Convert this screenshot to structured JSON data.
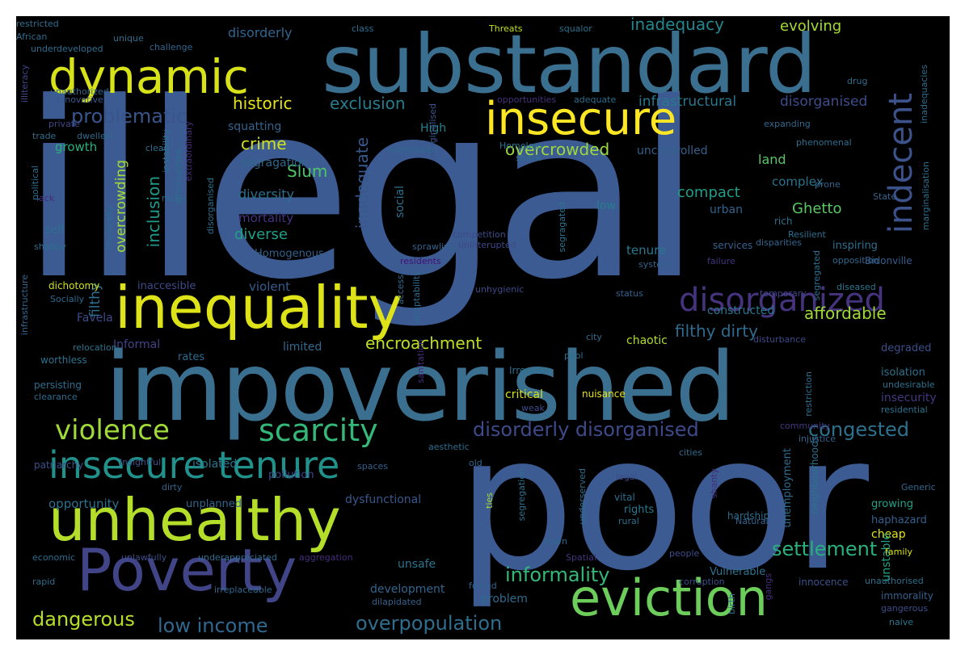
{
  "words": [
    {
      "text": "illegal",
      "color": "#3b5b92"
    },
    {
      "text": "poor",
      "color": "#3b5b92"
    },
    {
      "text": "impoverished",
      "color": "#3b6f8f"
    },
    {
      "text": "substandard",
      "color": "#3b6f8f"
    },
    {
      "text": "Poverty",
      "color": "#414487"
    },
    {
      "text": "inequality",
      "color": "#dde318"
    },
    {
      "text": "unhealthy",
      "color": "#b5de2b"
    },
    {
      "text": "eviction",
      "color": "#6ccd5a"
    },
    {
      "text": "insecure",
      "color": "#fde725"
    },
    {
      "text": "dynamic",
      "color": "#d8e219"
    },
    {
      "text": "insecure tenure",
      "color": "#21918c"
    },
    {
      "text": "disorganized",
      "color": "#46337e"
    },
    {
      "text": "indecent",
      "color": "#3b528b"
    },
    {
      "text": "violence",
      "color": "#a0da39"
    },
    {
      "text": "scarcity",
      "color": "#35b779"
    },
    {
      "text": "disorderly disorganised",
      "color": "#3e4a89"
    },
    {
      "text": "congested",
      "color": "#2c728e"
    },
    {
      "text": "problematic",
      "color": "#39568c"
    },
    {
      "text": "settlement",
      "color": "#2ab07f"
    },
    {
      "text": "informality",
      "color": "#35b779"
    },
    {
      "text": "dangerous",
      "color": "#b5de2b"
    },
    {
      "text": "low income",
      "color": "#31688e"
    },
    {
      "text": "overpopulation",
      "color": "#2e6e8e"
    },
    {
      "text": "encroachment",
      "color": "#bddf26"
    },
    {
      "text": "affordable",
      "color": "#9fda3a"
    },
    {
      "text": "filthy dirty",
      "color": "#2f6b8e"
    },
    {
      "text": "exclusion",
      "color": "#287c8e"
    },
    {
      "text": "historic",
      "color": "#e5e419"
    },
    {
      "text": "overcrowded",
      "color": "#9bd93c"
    },
    {
      "text": "inadequacy",
      "color": "#24868e"
    },
    {
      "text": "evolving",
      "color": "#a5db36"
    },
    {
      "text": "infrastructural",
      "color": "#2a788e"
    },
    {
      "text": "disorganised",
      "color": "#3d4d8a"
    },
    {
      "text": "crime",
      "color": "#d2e21b"
    },
    {
      "text": "Slum",
      "color": "#4ec36b"
    },
    {
      "text": "inadequate",
      "color": "#38598c"
    },
    {
      "text": "inclusion",
      "color": "#1f998a"
    },
    {
      "text": "overcrowding",
      "color": "#a8db34"
    },
    {
      "text": "filthy",
      "color": "#2e6f8e"
    },
    {
      "text": "compact",
      "color": "#1f9e89"
    },
    {
      "text": "diverse",
      "color": "#1fa088"
    },
    {
      "text": "diversity",
      "color": "#2d708e"
    },
    {
      "text": "Ghetto",
      "color": "#5ac864"
    },
    {
      "text": "land",
      "color": "#56c667"
    },
    {
      "text": "complex",
      "color": "#2c728e"
    },
    {
      "text": "growth",
      "color": "#29af7f"
    },
    {
      "text": "segragation",
      "color": "#31688e"
    },
    {
      "text": "squatting",
      "color": "#33638d"
    },
    {
      "text": "disorderly",
      "color": "#32658e"
    },
    {
      "text": "High",
      "color": "#26828e"
    },
    {
      "text": "mortality",
      "color": "#46337e"
    },
    {
      "text": "self",
      "color": "#2e6e8e"
    },
    {
      "text": "tenure",
      "color": "#2a788e"
    },
    {
      "text": "low",
      "color": "#287c8e"
    },
    {
      "text": "urban",
      "color": "#33638d"
    },
    {
      "text": "social",
      "color": "#2c728e"
    },
    {
      "text": "violent",
      "color": "#365d8d"
    },
    {
      "text": "Homogenous",
      "color": "#34618d"
    },
    {
      "text": "uncontrolled",
      "color": "#34618d"
    },
    {
      "text": "constructed",
      "color": "#2a768e"
    },
    {
      "text": "chaotic",
      "color": "#b0dd2f"
    },
    {
      "text": "Favela",
      "color": "#3e4c8a"
    },
    {
      "text": "Informal",
      "color": "#414487"
    },
    {
      "text": "rates",
      "color": "#2e6d8e"
    },
    {
      "text": "limited",
      "color": "#31688e"
    },
    {
      "text": "critical",
      "color": "#d5e21a"
    },
    {
      "text": "isolated",
      "color": "#2a788e"
    },
    {
      "text": "pollution",
      "color": "#3f4889"
    },
    {
      "text": "opportunity",
      "color": "#2d708e"
    },
    {
      "text": "unplanned",
      "color": "#31688e"
    },
    {
      "text": "dysfunctional",
      "color": "#39568c"
    },
    {
      "text": "rights",
      "color": "#2a788e"
    },
    {
      "text": "cheap",
      "color": "#e2e418"
    },
    {
      "text": "unstable",
      "color": "#21a585"
    },
    {
      "text": "unsafe",
      "color": "#2c738e"
    },
    {
      "text": "development",
      "color": "#32658e"
    },
    {
      "text": "problem",
      "color": "#306a8e"
    },
    {
      "text": "Vulnerable",
      "color": "#2c728e"
    },
    {
      "text": "innocence",
      "color": "#3b528b"
    },
    {
      "text": "immorality",
      "color": "#34618d"
    },
    {
      "text": "unauthorised",
      "color": "#2d708e"
    },
    {
      "text": "unemployment",
      "color": "#2f6c8e"
    },
    {
      "text": "neighbourhoods",
      "color": "#2c728e"
    },
    {
      "text": "haphazard",
      "color": "#35608d"
    },
    {
      "text": "growing",
      "color": "#20a386"
    },
    {
      "text": "hardship",
      "color": "#2e6e8e"
    },
    {
      "text": "isolation",
      "color": "#2d718e"
    },
    {
      "text": "insecurity",
      "color": "#453781"
    },
    {
      "text": "undesirable",
      "color": "#2d718e"
    },
    {
      "text": "residential",
      "color": "#2c738e"
    },
    {
      "text": "degraded",
      "color": "#3c4f8a"
    },
    {
      "text": "nuisance",
      "color": "#e7e419"
    },
    {
      "text": "Irregular",
      "color": "#2e6f8e"
    },
    {
      "text": "services",
      "color": "#34618d"
    },
    {
      "text": "system",
      "color": "#33638d"
    },
    {
      "text": "access",
      "color": "#2f6b8e"
    },
    {
      "text": "status",
      "color": "#33638d"
    },
    {
      "text": "temporary",
      "color": "#3f4788"
    },
    {
      "text": "diseased",
      "color": "#2a788e"
    },
    {
      "text": "disturbance",
      "color": "#3e4989"
    },
    {
      "text": "inspiring",
      "color": "#2d708e"
    },
    {
      "text": "Bidonville",
      "color": "#365d8d"
    },
    {
      "text": "opposition",
      "color": "#31688e"
    },
    {
      "text": "disparities",
      "color": "#32658e"
    },
    {
      "text": "failure",
      "color": "#46337e"
    },
    {
      "text": "Resilient",
      "color": "#2e6f8e"
    },
    {
      "text": "rich",
      "color": "#2d708e"
    },
    {
      "text": "prone",
      "color": "#33638d"
    },
    {
      "text": "phenomenal",
      "color": "#2e6e8e"
    },
    {
      "text": "expanding",
      "color": "#306a8e"
    },
    {
      "text": "Homeless",
      "color": "#2c738e"
    },
    {
      "text": "shack",
      "color": "#2e6e8e"
    },
    {
      "text": "competition",
      "color": "#3e4c8a"
    },
    {
      "text": "uninterupted",
      "color": "#3f4889"
    },
    {
      "text": "sprawling",
      "color": "#33638d"
    },
    {
      "text": "residents",
      "color": "#440f76"
    },
    {
      "text": "marginalised",
      "color": "#3a548c"
    },
    {
      "text": "inaccesible",
      "color": "#3e4a89"
    },
    {
      "text": "dichotomy",
      "color": "#cde11d"
    },
    {
      "text": "Socially",
      "color": "#306a8e"
    },
    {
      "text": "relocation",
      "color": "#2c738e"
    },
    {
      "text": "worthless",
      "color": "#2d718e"
    },
    {
      "text": "persisting",
      "color": "#2e6e8e"
    },
    {
      "text": "clearance",
      "color": "#2f6c8e"
    },
    {
      "text": "patriarchy",
      "color": "#3b528b"
    },
    {
      "text": "economic",
      "color": "#2e6d8e"
    },
    {
      "text": "rapid",
      "color": "#2e6e8e"
    },
    {
      "text": "irreplaceable",
      "color": "#31688e"
    },
    {
      "text": "unlawfully",
      "color": "#3e4c8a"
    },
    {
      "text": "underappreciated",
      "color": "#2e6e8e"
    },
    {
      "text": "aggregation",
      "color": "#472d7b"
    },
    {
      "text": "dilapidated",
      "color": "#34618d"
    },
    {
      "text": "forced",
      "color": "#32658e"
    },
    {
      "text": "corruption",
      "color": "#3b528b"
    },
    {
      "text": "people",
      "color": "#3e4c8a"
    },
    {
      "text": "family",
      "color": "#dae319"
    },
    {
      "text": "gangerous",
      "color": "#3d4e8a"
    },
    {
      "text": "naive",
      "color": "#2a768e"
    },
    {
      "text": "Generic",
      "color": "#31688e"
    },
    {
      "text": "vital",
      "color": "#2d708e"
    },
    {
      "text": "rural",
      "color": "#2d718e"
    },
    {
      "text": "legal",
      "color": "#3e4c8a"
    },
    {
      "text": "town",
      "color": "#31688e"
    },
    {
      "text": "Natural",
      "color": "#32658e"
    },
    {
      "text": "Spatial",
      "color": "#46337e"
    },
    {
      "text": "pool",
      "color": "#2d708e"
    },
    {
      "text": "city",
      "color": "#2e6e8e"
    },
    {
      "text": "cities",
      "color": "#2e6d8e"
    },
    {
      "text": "old",
      "color": "#32658e"
    },
    {
      "text": "spaces",
      "color": "#34618d"
    },
    {
      "text": "aesthetic",
      "color": "#2e6d8e"
    },
    {
      "text": "Insightful",
      "color": "#3b528b"
    },
    {
      "text": "community",
      "color": "#453882"
    },
    {
      "text": "injustice",
      "color": "#33638d"
    },
    {
      "text": "weak",
      "color": "#3e4c8a"
    },
    {
      "text": "unhygienic",
      "color": "#3e4989"
    },
    {
      "text": "restricted",
      "color": "#2e6f8e"
    },
    {
      "text": "African",
      "color": "#2f6b8e"
    },
    {
      "text": "illiteracy",
      "color": "#3f4788"
    },
    {
      "text": "underdeveloped",
      "color": "#2e6e8e"
    },
    {
      "text": "unique",
      "color": "#2e6e8e"
    },
    {
      "text": "challenge",
      "color": "#32658e"
    },
    {
      "text": "class",
      "color": "#2e6e8e"
    },
    {
      "text": "Threats",
      "color": "#c2df23"
    },
    {
      "text": "squalor",
      "color": "#2c738e"
    },
    {
      "text": "unauthorized",
      "color": "#32658e"
    },
    {
      "text": "Innovative",
      "color": "#38598c"
    },
    {
      "text": "private",
      "color": "#3f4788"
    },
    {
      "text": "trade",
      "color": "#2e6e8e"
    },
    {
      "text": "dwellers",
      "color": "#2f6c8e"
    },
    {
      "text": "overlooked",
      "color": "#306a8e"
    },
    {
      "text": "opportunities",
      "color": "#46337e"
    },
    {
      "text": "adequate",
      "color": "#2e6d8e"
    },
    {
      "text": "clear",
      "color": "#2e6e8e"
    },
    {
      "text": "racial",
      "color": "#306a8e"
    },
    {
      "text": "lack",
      "color": "#472d7b"
    },
    {
      "text": "political",
      "color": "#2e6e8e"
    },
    {
      "text": "shabby",
      "color": "#2e6e8e"
    },
    {
      "text": "infrastructure",
      "color": "#32658e"
    },
    {
      "text": "drug",
      "color": "#2e6e8e"
    },
    {
      "text": "inadequacies",
      "color": "#2e6d8e"
    },
    {
      "text": "State",
      "color": "#32658e"
    },
    {
      "text": "marginalisation",
      "color": "#2e6e8e"
    },
    {
      "text": "segregation",
      "color": "#2d708e"
    },
    {
      "text": "underserved",
      "color": "#2e6e8e"
    },
    {
      "text": "restriction",
      "color": "#2e6e8e"
    },
    {
      "text": "birth",
      "color": "#2e6e8e"
    },
    {
      "text": "ties",
      "color": "#a8db34"
    },
    {
      "text": "shanty",
      "color": "#472d7b"
    },
    {
      "text": "gangs",
      "color": "#472d7b"
    },
    {
      "text": "Physically",
      "color": "#2e6d8e"
    },
    {
      "text": "instability",
      "color": "#2d718e"
    },
    {
      "text": "informalities",
      "color": "#2e6d8e"
    },
    {
      "text": "disorganised",
      "color": "#2e6e8e"
    },
    {
      "text": "segragated",
      "color": "#2c738e"
    },
    {
      "text": "adaptability",
      "color": "#306a8e"
    },
    {
      "text": "segregated",
      "color": "#2e6e8e"
    },
    {
      "text": "extraordinary",
      "color": "#472d7b"
    },
    {
      "text": "sanitation",
      "color": "#472d7b"
    },
    {
      "text": "dirty",
      "color": "#32658e"
    }
  ]
}
